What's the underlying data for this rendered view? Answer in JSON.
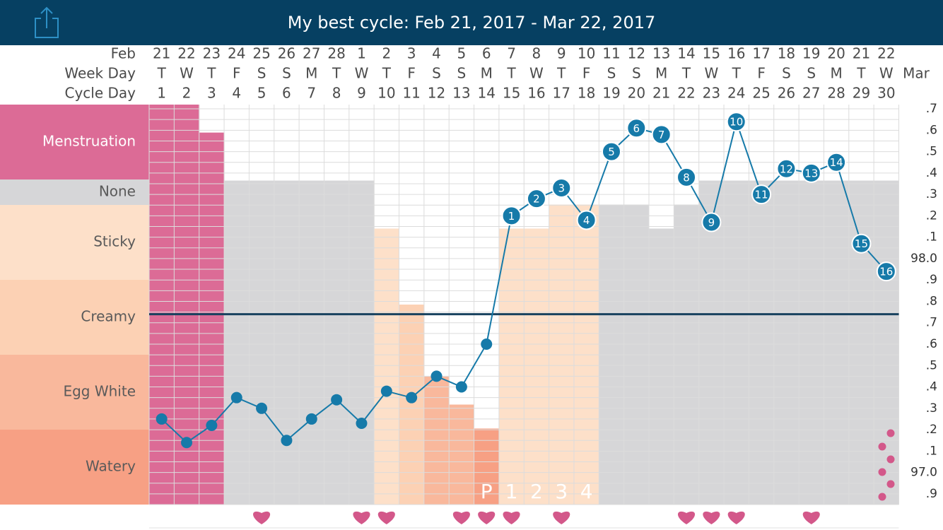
{
  "header": {
    "title": "My best cycle: Feb 21, 2017 - Mar 22, 2017",
    "share_icon": "share-icon"
  },
  "chart_data": {
    "type": "line",
    "row_labels": {
      "month": "Feb",
      "week_day": "Week Day",
      "cycle_day": "Cycle Day"
    },
    "end_month": "Mar",
    "dates": [
      "21",
      "22",
      "23",
      "24",
      "25",
      "26",
      "27",
      "28",
      "1",
      "2",
      "3",
      "4",
      "5",
      "6",
      "7",
      "8",
      "9",
      "10",
      "11",
      "12",
      "13",
      "14",
      "15",
      "16",
      "17",
      "18",
      "19",
      "20",
      "21",
      "22"
    ],
    "week_days": [
      "T",
      "W",
      "T",
      "F",
      "S",
      "S",
      "M",
      "T",
      "W",
      "T",
      "F",
      "S",
      "S",
      "M",
      "T",
      "W",
      "T",
      "F",
      "S",
      "S",
      "M",
      "T",
      "W",
      "T",
      "F",
      "S",
      "S",
      "M",
      "T",
      "W"
    ],
    "cycle_days": [
      1,
      2,
      3,
      4,
      5,
      6,
      7,
      8,
      9,
      10,
      11,
      12,
      13,
      14,
      15,
      16,
      17,
      18,
      19,
      20,
      21,
      22,
      23,
      24,
      25,
      26,
      27,
      28,
      29,
      30
    ],
    "mucus_categories": [
      "Menstruation",
      "None",
      "Sticky",
      "Creamy",
      "Egg White",
      "Watery"
    ],
    "mucus_colors": [
      "#dc6b96",
      "#d6d6d8",
      "#fde0c9",
      "#fcd1b4",
      "#f9b89c",
      "#f7a084"
    ],
    "day_fill_colors": [
      "#dc6b96",
      "#dc6b96",
      "#dc6b96",
      "#d6d6d8",
      "#d6d6d8",
      "#d6d6d8",
      "#d6d6d8",
      "#d6d6d8",
      "#d6d6d8",
      "#fde0c9",
      "#fcd1b4",
      "#f9b89c",
      "#f9b89c",
      "#f7a084",
      "#fde0c9",
      "#fde0c9",
      "#fde0c9",
      "#fde0c9",
      "#d6d6d8",
      "#d6d6d8",
      "#d6d6d8",
      "#d6d6d8",
      "#d6d6d8",
      "#d6d6d8",
      "#d6d6d8",
      "#d6d6d8",
      "#d6d6d8",
      "#d6d6d8",
      "#d6d6d8",
      "#d6d6d8"
    ],
    "day_fill_levels": [
      1.0,
      1.0,
      0.93,
      0.81,
      0.81,
      0.81,
      0.81,
      0.81,
      0.81,
      0.69,
      0.5,
      0.32,
      0.25,
      0.19,
      0.69,
      0.69,
      0.75,
      0.75,
      0.75,
      0.75,
      0.69,
      0.75,
      0.81,
      0.81,
      0.81,
      0.81,
      0.81,
      0.81,
      0.81,
      0.81
    ],
    "temperatures": [
      97.25,
      97.14,
      97.22,
      97.35,
      97.3,
      97.15,
      97.25,
      97.34,
      97.23,
      97.38,
      97.35,
      97.45,
      97.4,
      97.6,
      98.2,
      98.28,
      98.33,
      98.18,
      98.5,
      98.61,
      98.58,
      98.38,
      98.17,
      98.64,
      98.3,
      98.42,
      98.4,
      98.45,
      98.07,
      97.94
    ],
    "temp_labels": [
      "",
      "",
      "",
      "",
      "",
      "",
      "",
      "",
      "",
      "",
      "",
      "",
      "",
      "",
      "1",
      "2",
      "3",
      "4",
      "5",
      "6",
      "7",
      "8",
      "9",
      "10",
      "11",
      "12",
      "13",
      "14",
      "15",
      "16"
    ],
    "cover_line": 97.74,
    "temp_axis_labels": [
      ".7",
      ".6",
      ".5",
      ".4",
      ".3",
      ".2",
      ".1",
      "98.0",
      ".9",
      ".8",
      ".7",
      ".6",
      ".5",
      ".4",
      ".3",
      ".2",
      ".1",
      "97.0",
      ".9"
    ],
    "ylim": [
      96.85,
      98.72
    ],
    "peak_markers": [
      "P",
      "1",
      "2",
      "3",
      "4"
    ],
    "peak_start_index": 13,
    "intercourse_days": [
      4,
      8,
      9,
      12,
      13,
      14,
      16,
      21,
      22,
      23,
      26
    ],
    "spotting_dots": 5,
    "colors": {
      "header_bg": "#064062",
      "temp_line": "#167aa9",
      "cover_line": "#18425f",
      "heart": "#d3588a",
      "grid": "#dcdcdc"
    }
  }
}
